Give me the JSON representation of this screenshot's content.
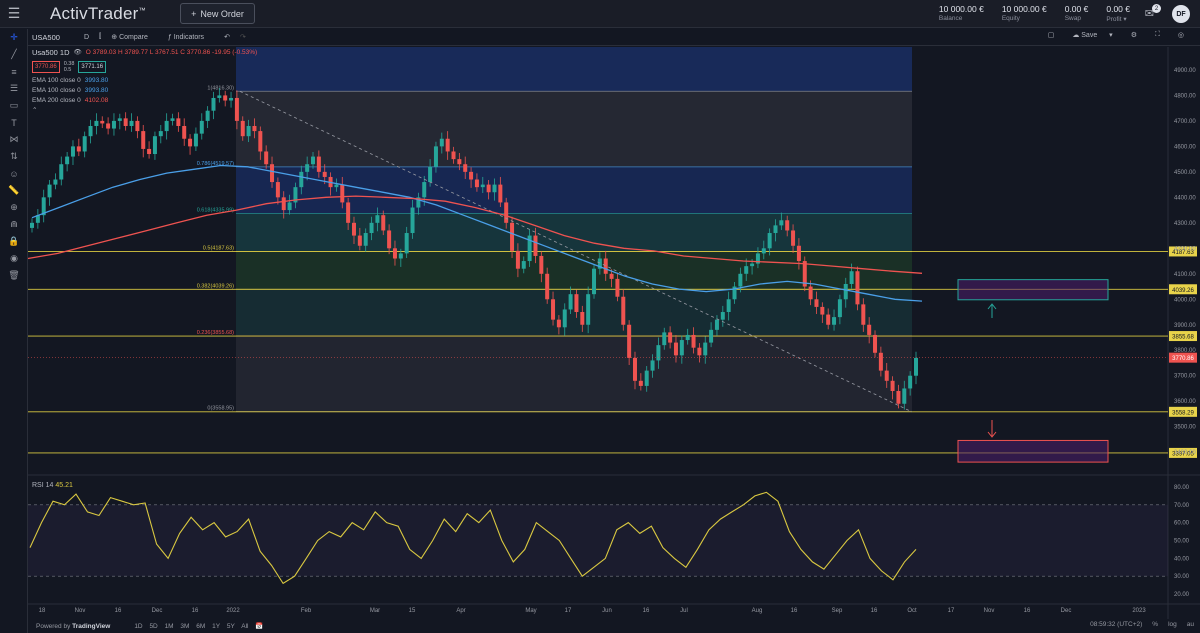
{
  "app": {
    "logo": "ActivTrader",
    "logo_mark": "™",
    "new_order_label": "New Order",
    "avatar_initials": "DF",
    "mail_badge": "2"
  },
  "account": [
    {
      "value": "10 000.00 €",
      "label": "Balance"
    },
    {
      "value": "10 000.00 €",
      "label": "Equity"
    },
    {
      "value": "0.00 €",
      "label": "Swap"
    },
    {
      "value": "0.00 €",
      "label": "Profit"
    }
  ],
  "toolbar": {
    "symbol": "USA500",
    "interval": "D",
    "compare_label": "Compare",
    "indicators_label": "Indicators",
    "save_label": "Save"
  },
  "legend": {
    "title": "Usa500  1D",
    "ohlc": "O 3789.03  H 3789.77  L 3767.51  C 3770.86  -19.95 (-0.53%)",
    "sell_price": "3770.86",
    "spread_top": "0.38",
    "spread_bottom": "0.5",
    "buy_price": "3771.16",
    "ema_lines": [
      {
        "label": "EMA 100 close 0",
        "value": "3993.80",
        "color": "#4a9fe8"
      },
      {
        "label": "EMA 100 close 0",
        "value": "3993.80",
        "color": "#4a9fe8"
      },
      {
        "label": "EMA 200 close 0",
        "value": "4102.08",
        "color": "#ef5350"
      }
    ]
  },
  "rsi": {
    "label": "RSI 14",
    "value": "45.21"
  },
  "chart_data": {
    "type": "candlestick",
    "price_axis": [
      "4900.00",
      "4800.00",
      "4700.00",
      "4600.00",
      "4500.00",
      "4400.00",
      "4300.00",
      "4200.00",
      "4100.00",
      "4000.00",
      "3900.00",
      "3800.00",
      "3700.00",
      "3600.00",
      "3500.00",
      "3400.00"
    ],
    "price_range": [
      3330,
      4990
    ],
    "time_axis": [
      "18",
      "Nov",
      "16",
      "Dec",
      "16",
      "2022",
      "Feb",
      "Mar",
      "15",
      "Apr",
      "May",
      "17",
      "Jun",
      "16",
      "Jul",
      "Aug",
      "16",
      "Sep",
      "16",
      "Oct",
      "17",
      "Nov",
      "16",
      "Dec",
      "2023"
    ],
    "fibonacci": [
      {
        "label": "1(4816.30)",
        "price": 4816.3,
        "color": "#9598a1"
      },
      {
        "label": "0.786(4519.57)",
        "price": 4519.57,
        "color": "#4a9fe8"
      },
      {
        "label": "0.618(4335.99)",
        "price": 4335.99,
        "color": "#26a69a"
      },
      {
        "label": "0.5(4187.63)",
        "price": 4187.63,
        "color": "#d9c841"
      },
      {
        "label": "0.382(4039.26)",
        "price": 4039.26,
        "color": "#d9c841"
      },
      {
        "label": "0.236(3855.68)",
        "price": 3855.68,
        "color": "#ef5350"
      },
      {
        "label": "0(3558.95)",
        "price": 3558.95,
        "color": "#9598a1"
      }
    ],
    "horizontal_levels": [
      {
        "label": "4187.63",
        "price": 4187.63
      },
      {
        "label": "4039.26",
        "price": 4039.26
      },
      {
        "label": "3855.68",
        "price": 3855.68
      },
      {
        "label": "3558.29",
        "price": 3558.29
      },
      {
        "label": "3397.05",
        "price": 3397.05
      }
    ],
    "current_price": {
      "label": "3770.86",
      "price": 3770.86
    },
    "target_up_box": {
      "price_top": 4077,
      "price_bottom": 3998
    },
    "target_down_box": {
      "price_top": 3446,
      "price_bottom": 3361
    },
    "close_series": [
      4300,
      4330,
      4400,
      4450,
      4470,
      4530,
      4560,
      4600,
      4580,
      4640,
      4680,
      4700,
      4690,
      4670,
      4700,
      4710,
      4680,
      4700,
      4660,
      4590,
      4570,
      4640,
      4660,
      4700,
      4710,
      4680,
      4630,
      4600,
      4650,
      4700,
      4740,
      4790,
      4800,
      4780,
      4790,
      4700,
      4640,
      4680,
      4660,
      4580,
      4530,
      4460,
      4400,
      4350,
      4380,
      4440,
      4500,
      4530,
      4560,
      4500,
      4480,
      4440,
      4450,
      4380,
      4300,
      4250,
      4210,
      4260,
      4300,
      4330,
      4270,
      4200,
      4160,
      4180,
      4260,
      4360,
      4400,
      4460,
      4520,
      4600,
      4630,
      4580,
      4550,
      4530,
      4500,
      4470,
      4440,
      4450,
      4420,
      4450,
      4380,
      4300,
      4190,
      4120,
      4150,
      4250,
      4170,
      4100,
      4000,
      3920,
      3890,
      3960,
      4020,
      3950,
      3900,
      4020,
      4120,
      4160,
      4100,
      4080,
      4010,
      3900,
      3770,
      3680,
      3660,
      3720,
      3760,
      3820,
      3870,
      3830,
      3780,
      3840,
      3860,
      3810,
      3780,
      3830,
      3880,
      3920,
      3950,
      4000,
      4050,
      4100,
      4130,
      4140,
      4180,
      4200,
      4260,
      4290,
      4310,
      4270,
      4210,
      4150,
      4050,
      4000,
      3970,
      3940,
      3900,
      3930,
      4000,
      4060,
      4110,
      3980,
      3900,
      3860,
      3790,
      3720,
      3680,
      3640,
      3590,
      3650,
      3700,
      3770
    ],
    "ema100_series": [
      4320,
      4360,
      4400,
      4440,
      4470,
      4495,
      4510,
      4525,
      4520,
      4500,
      4480,
      4460,
      4440,
      4420,
      4400,
      4370,
      4330,
      4290,
      4250,
      4210,
      4170,
      4130,
      4090,
      4060,
      4040,
      4030,
      4040,
      4060,
      4070,
      4060,
      4040,
      4020,
      4000,
      3993
    ],
    "ema200_series": [
      4160,
      4180,
      4210,
      4240,
      4270,
      4300,
      4330,
      4350,
      4375,
      4390,
      4400,
      4405,
      4400,
      4395,
      4385,
      4360,
      4330,
      4290,
      4250,
      4220,
      4200,
      4190,
      4170,
      4160,
      4150,
      4145,
      4140,
      4130,
      4120,
      4110,
      4102
    ],
    "rsi_axis": [
      "80.00",
      "70.00",
      "60.00",
      "50.00",
      "40.00",
      "30.00",
      "20.00"
    ],
    "rsi_range": [
      15,
      85
    ],
    "rsi_levels": [
      70,
      30
    ],
    "rsi_series": [
      46,
      60,
      72,
      70,
      76,
      66,
      64,
      74,
      72,
      70,
      71,
      48,
      40,
      54,
      63,
      56,
      60,
      52,
      55,
      62,
      44,
      36,
      26,
      30,
      40,
      50,
      55,
      52,
      60,
      56,
      66,
      60,
      58,
      45,
      40,
      50,
      62,
      55,
      65,
      60,
      67,
      50,
      38,
      45,
      60,
      55,
      50,
      40,
      30,
      35,
      40,
      56,
      60,
      54,
      58,
      46,
      40,
      35,
      45,
      56,
      62,
      66,
      70,
      75,
      77,
      72,
      55,
      45,
      38,
      34,
      42,
      50,
      56,
      40,
      33,
      28,
      38,
      45
    ]
  },
  "bottom": {
    "powered": "Powered by",
    "powered_brand": "TradingView",
    "ranges": [
      "1D",
      "5D",
      "1M",
      "3M",
      "6M",
      "1Y",
      "5Y",
      "All"
    ],
    "clock": "08:59:32 (UTC+2)",
    "scale_pct": "%",
    "scale_log": "log",
    "scale_auto": "au"
  },
  "colors": {
    "up": "#26a69a",
    "down": "#ef5350",
    "ema100": "#4a9fe8",
    "ema200": "#ef5350",
    "rsi": "#d9c841",
    "level": "#d9c841"
  }
}
